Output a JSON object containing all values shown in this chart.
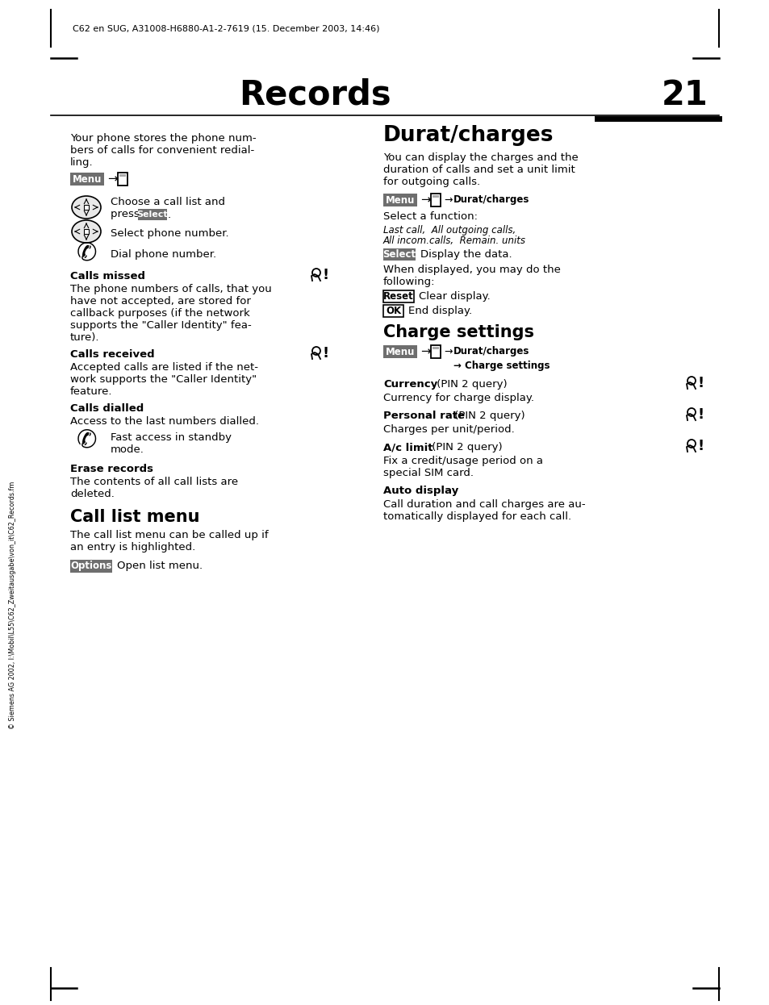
{
  "bg_color": "#ffffff",
  "header_text": "C62 en SUG, A31008-H6880-A1-2-7619 (15. December 2003, 14:46)",
  "title": "Records",
  "page_number": "21",
  "sidebar_text": "© Siemens AG 2002, I:\\Mobil\\L55\\C62_Zweitausgabe\\von_it\\C62_Records.fm",
  "left_intro": [
    "Your phone stores the phone num-",
    "bers of calls for convenient redial-",
    "ling."
  ],
  "left_sections": [
    {
      "heading": "Calls missed",
      "has_icon": true,
      "body": [
        "The phone numbers of calls, that you",
        "have not accepted, are stored for",
        "callback purposes (if the network",
        "supports the \"Caller Identity\" fea-",
        "ture)."
      ]
    },
    {
      "heading": "Calls received",
      "has_icon": true,
      "body": [
        "Accepted calls are listed if the net-",
        "work supports the \"Caller Identity\"",
        "feature."
      ]
    },
    {
      "heading": "Calls dialled",
      "has_icon": false,
      "body": [
        "Access to the last numbers dialled."
      ]
    },
    {
      "heading": "Erase records",
      "has_icon": false,
      "body": [
        "The contents of all call lists are",
        "deleted."
      ]
    }
  ],
  "right_heading": "Durat/charges",
  "right_intro": [
    "You can display the charges and the",
    "duration of calls and set a unit limit",
    "for outgoing calls."
  ],
  "function_list_line1": "Last call,  All outgoing calls,",
  "function_list_line2": "All incom.calls,  Remain. units",
  "right_sections": [
    {
      "heading": "Currency",
      "sub": " (PIN 2 query)",
      "has_icon": true,
      "body": "Currency for charge display."
    },
    {
      "heading": "Personal rate",
      "sub": " (PIN 2 query)",
      "has_icon": true,
      "body": "Charges per unit/period."
    },
    {
      "heading": "A/c limit",
      "sub": " (PIN 2 query)",
      "has_icon": true,
      "body": [
        "Fix a credit/usage period on a",
        "special SIM card."
      ]
    }
  ],
  "auto_body": [
    "Call duration and call charges are au-",
    "tomatically displayed for each call."
  ]
}
